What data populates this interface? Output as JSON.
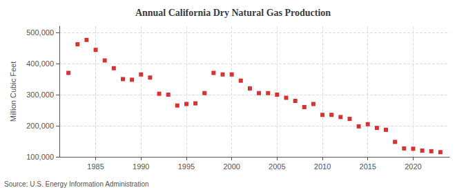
{
  "chart_data": {
    "type": "scatter",
    "title": "Annual California Dry Natural Gas Production",
    "ylabel": "Million Cubic Feet",
    "annotations": [
      "Source: U.S. Energy Information Administration"
    ],
    "x": [
      1982,
      1983,
      1984,
      1985,
      1986,
      1987,
      1988,
      1989,
      1990,
      1991,
      1992,
      1993,
      1994,
      1995,
      1996,
      1997,
      1998,
      1999,
      2000,
      2001,
      2002,
      2003,
      2004,
      2005,
      2006,
      2007,
      2008,
      2009,
      2010,
      2011,
      2012,
      2013,
      2014,
      2015,
      2016,
      2017,
      2018,
      2019,
      2020,
      2021,
      2022,
      2023
    ],
    "values": [
      370000,
      462000,
      476000,
      444000,
      410000,
      385000,
      350000,
      348000,
      365000,
      355000,
      303000,
      300000,
      265000,
      270000,
      272000,
      305000,
      370000,
      365000,
      365000,
      345000,
      320000,
      305000,
      305000,
      300000,
      290000,
      280000,
      260000,
      270000,
      235000,
      235000,
      228000,
      222000,
      198000,
      205000,
      193000,
      187000,
      148000,
      127000,
      126000,
      120000,
      118000,
      115000
    ],
    "color": "#cc0000",
    "marker": "square",
    "xlim": [
      1981,
      2024
    ],
    "xticks": [
      1985,
      1990,
      1995,
      2000,
      2005,
      2010,
      2015,
      2020
    ],
    "ylim": [
      100000,
      520000
    ],
    "yticks": [
      {
        "value": 100000,
        "label": "100,000"
      },
      {
        "value": 200000,
        "label": "200,000"
      },
      {
        "value": 300000,
        "label": "300,000"
      },
      {
        "value": 400000,
        "label": "400,000"
      },
      {
        "value": 500000,
        "label": "500,000"
      }
    ],
    "grid": true
  }
}
